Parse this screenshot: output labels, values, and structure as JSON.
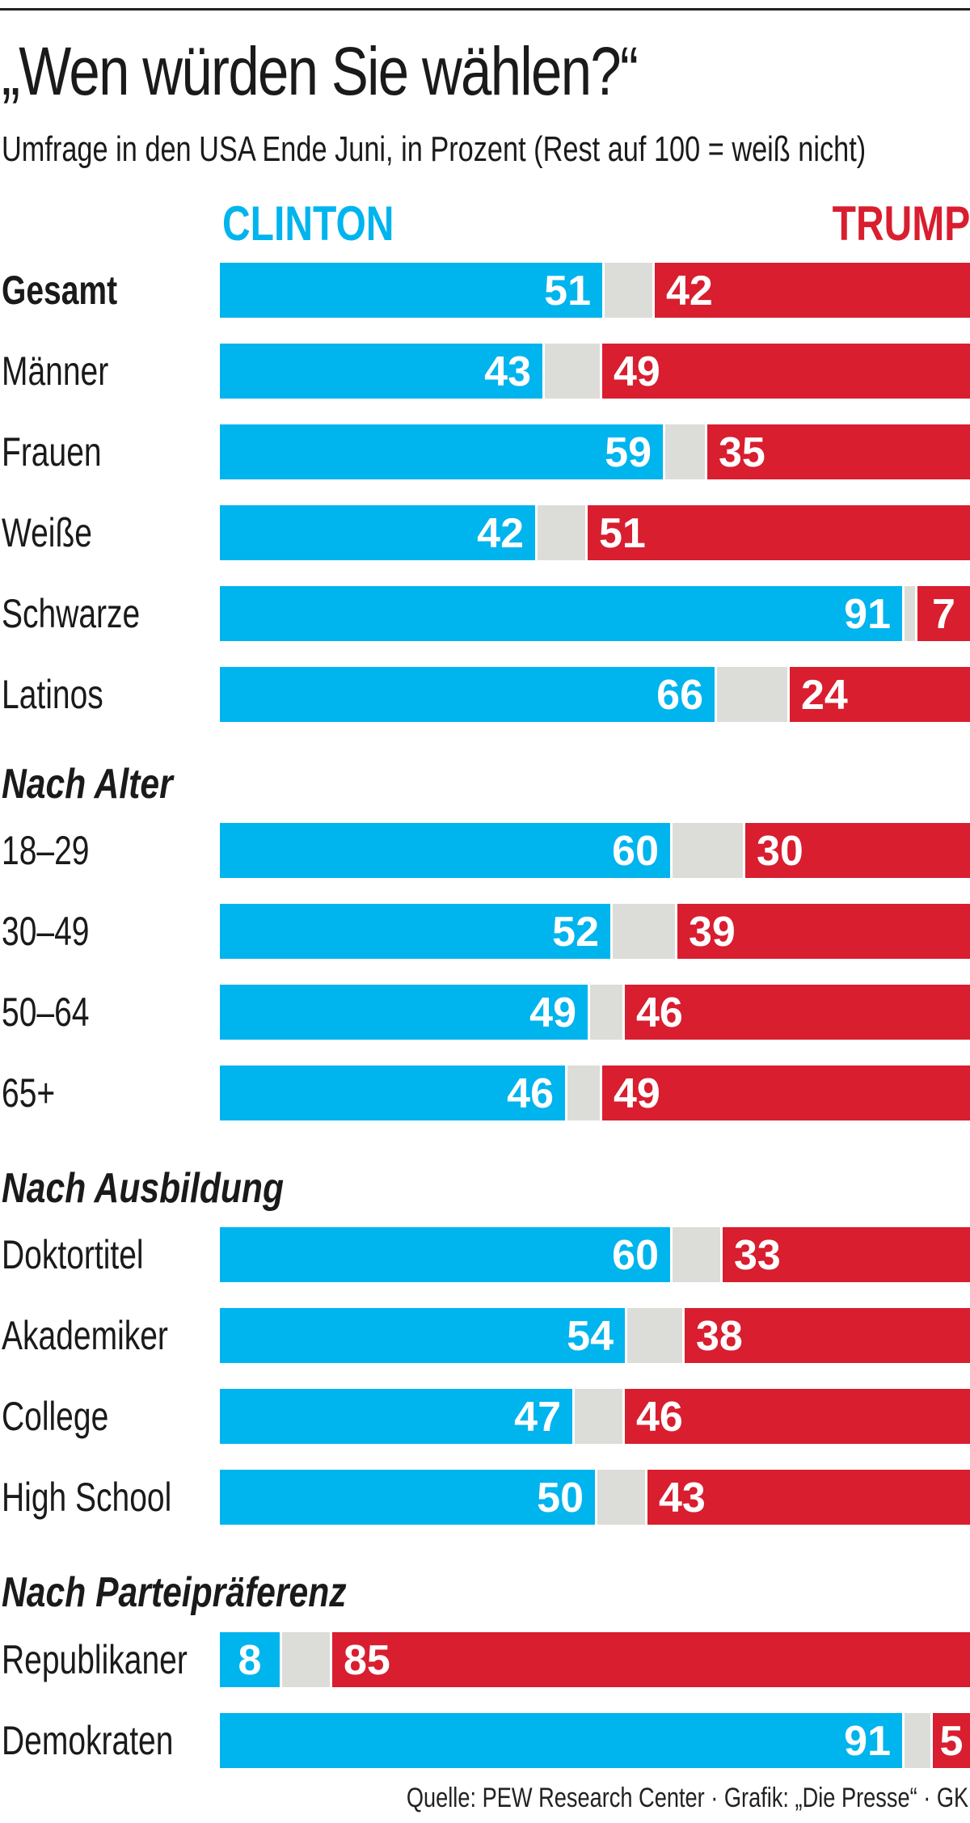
{
  "header": {
    "title": "„Wen würden Sie wählen?“",
    "subtitle": "Umfrage in den USA Ende Juni, in Prozent (Rest auf 100 = weiß nicht)"
  },
  "legend": {
    "clinton": "CLINTON",
    "trump": "TRUMP"
  },
  "colors": {
    "clinton": "#00b4ee",
    "undecided": "#dcdcd8",
    "trump": "#d81e2f"
  },
  "footer": {
    "source": "Quelle: PEW Research Center · Grafik: „Die Presse“ · GK"
  },
  "chart_data": {
    "type": "bar",
    "orientation": "horizontal-stacked",
    "title": "„Wen würden Sie wählen?“",
    "subtitle": "Umfrage in den USA Ende Juni, in Prozent (Rest auf 100 = weiß nicht)",
    "xlim": [
      0,
      100
    ],
    "series": [
      {
        "name": "Clinton",
        "color": "#00b4ee"
      },
      {
        "name": "weiß nicht",
        "color": "#dcdcd8"
      },
      {
        "name": "Trump",
        "color": "#d81e2f"
      }
    ],
    "groups": [
      {
        "heading": "",
        "rows": [
          {
            "label": "Gesamt",
            "clinton": 51,
            "trump": 42,
            "bold": true
          },
          {
            "label": "Männer",
            "clinton": 43,
            "trump": 49
          },
          {
            "label": "Frauen",
            "clinton": 59,
            "trump": 35
          },
          {
            "label": "Weiße",
            "clinton": 42,
            "trump": 51
          },
          {
            "label": "Schwarze",
            "clinton": 91,
            "trump": 7
          },
          {
            "label": "Latinos",
            "clinton": 66,
            "trump": 24
          }
        ]
      },
      {
        "heading": "Nach Alter",
        "rows": [
          {
            "label": "18–29",
            "clinton": 60,
            "trump": 30
          },
          {
            "label": "30–49",
            "clinton": 52,
            "trump": 39
          },
          {
            "label": "50–64",
            "clinton": 49,
            "trump": 46
          },
          {
            "label": "65+",
            "clinton": 46,
            "trump": 49
          }
        ]
      },
      {
        "heading": "Nach Ausbildung",
        "rows": [
          {
            "label": "Doktortitel",
            "clinton": 60,
            "trump": 33
          },
          {
            "label": "Akademiker",
            "clinton": 54,
            "trump": 38
          },
          {
            "label": "College",
            "clinton": 47,
            "trump": 46
          },
          {
            "label": "High School",
            "clinton": 50,
            "trump": 43
          }
        ]
      },
      {
        "heading": "Nach Parteipräferenz",
        "rows": [
          {
            "label": "Republikaner",
            "clinton": 8,
            "trump": 85
          },
          {
            "label": "Demokraten",
            "clinton": 91,
            "trump": 5
          }
        ]
      }
    ]
  }
}
